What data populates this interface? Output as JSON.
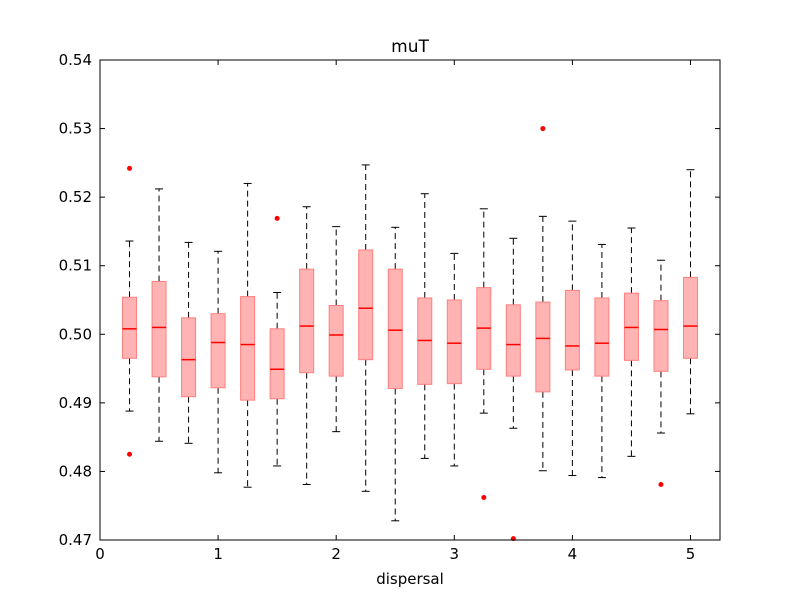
{
  "chart_data": {
    "type": "box",
    "title": "muT",
    "xlabel": "dispersal",
    "ylabel": "",
    "xlim": [
      0,
      5.25
    ],
    "ylim": [
      0.47,
      0.54
    ],
    "x_ticks": [
      0,
      1,
      2,
      3,
      4,
      5
    ],
    "x_tick_labels": [
      "0",
      "1",
      "2",
      "3",
      "4",
      "5"
    ],
    "y_ticks": [
      0.47,
      0.48,
      0.49,
      0.5,
      0.51,
      0.52,
      0.53,
      0.54
    ],
    "y_tick_labels": [
      "0.47",
      "0.48",
      "0.49",
      "0.50",
      "0.51",
      "0.52",
      "0.53",
      "0.54"
    ],
    "grid": false,
    "colors": {
      "box_fill": "#ffb3b3",
      "box_edge": "#ff7f7f",
      "median": "#ff0000",
      "whisker": "#000000",
      "outlier": "#ff0000"
    },
    "boxes": [
      {
        "x": 0.25,
        "whisker_low": 0.4888,
        "q1": 0.4965,
        "median": 0.5008,
        "q3": 0.5054,
        "whisker_high": 0.5136,
        "outliers": [
          0.5242,
          0.4825
        ]
      },
      {
        "x": 0.5,
        "whisker_low": 0.4844,
        "q1": 0.4938,
        "median": 0.501,
        "q3": 0.5077,
        "whisker_high": 0.5212,
        "outliers": []
      },
      {
        "x": 0.75,
        "whisker_low": 0.4841,
        "q1": 0.4909,
        "median": 0.4963,
        "q3": 0.5024,
        "whisker_high": 0.5134,
        "outliers": []
      },
      {
        "x": 1.0,
        "whisker_low": 0.4798,
        "q1": 0.4922,
        "median": 0.4988,
        "q3": 0.503,
        "whisker_high": 0.5121,
        "outliers": []
      },
      {
        "x": 1.25,
        "whisker_low": 0.4777,
        "q1": 0.4904,
        "median": 0.4985,
        "q3": 0.5055,
        "whisker_high": 0.522,
        "outliers": []
      },
      {
        "x": 1.5,
        "whisker_low": 0.4808,
        "q1": 0.4906,
        "median": 0.4949,
        "q3": 0.5008,
        "whisker_high": 0.5061,
        "outliers": [
          0.5169
        ]
      },
      {
        "x": 1.75,
        "whisker_low": 0.4781,
        "q1": 0.4944,
        "median": 0.5012,
        "q3": 0.5095,
        "whisker_high": 0.5186,
        "outliers": []
      },
      {
        "x": 2.0,
        "whisker_low": 0.4858,
        "q1": 0.4939,
        "median": 0.4999,
        "q3": 0.5042,
        "whisker_high": 0.5157,
        "outliers": []
      },
      {
        "x": 2.25,
        "whisker_low": 0.4771,
        "q1": 0.4963,
        "median": 0.5038,
        "q3": 0.5123,
        "whisker_high": 0.5247,
        "outliers": []
      },
      {
        "x": 2.5,
        "whisker_low": 0.4728,
        "q1": 0.4921,
        "median": 0.5006,
        "q3": 0.5095,
        "whisker_high": 0.5156,
        "outliers": []
      },
      {
        "x": 2.75,
        "whisker_low": 0.4819,
        "q1": 0.4927,
        "median": 0.4991,
        "q3": 0.5053,
        "whisker_high": 0.5205,
        "outliers": []
      },
      {
        "x": 3.0,
        "whisker_low": 0.4808,
        "q1": 0.4928,
        "median": 0.4987,
        "q3": 0.505,
        "whisker_high": 0.5118,
        "outliers": []
      },
      {
        "x": 3.25,
        "whisker_low": 0.4885,
        "q1": 0.4949,
        "median": 0.5009,
        "q3": 0.5068,
        "whisker_high": 0.5183,
        "outliers": [
          0.4762
        ]
      },
      {
        "x": 3.5,
        "whisker_low": 0.4863,
        "q1": 0.4939,
        "median": 0.4985,
        "q3": 0.5043,
        "whisker_high": 0.514,
        "outliers": [
          0.4702
        ]
      },
      {
        "x": 3.75,
        "whisker_low": 0.4801,
        "q1": 0.4916,
        "median": 0.4994,
        "q3": 0.5047,
        "whisker_high": 0.5172,
        "outliers": [
          0.53
        ]
      },
      {
        "x": 4.0,
        "whisker_low": 0.4794,
        "q1": 0.4948,
        "median": 0.4983,
        "q3": 0.5064,
        "whisker_high": 0.5165,
        "outliers": []
      },
      {
        "x": 4.25,
        "whisker_low": 0.4791,
        "q1": 0.4939,
        "median": 0.4987,
        "q3": 0.5053,
        "whisker_high": 0.5131,
        "outliers": []
      },
      {
        "x": 4.5,
        "whisker_low": 0.4822,
        "q1": 0.4962,
        "median": 0.501,
        "q3": 0.506,
        "whisker_high": 0.5155,
        "outliers": []
      },
      {
        "x": 4.75,
        "whisker_low": 0.4856,
        "q1": 0.4946,
        "median": 0.5007,
        "q3": 0.5049,
        "whisker_high": 0.5108,
        "outliers": [
          0.4781
        ]
      },
      {
        "x": 5.0,
        "whisker_low": 0.4884,
        "q1": 0.4965,
        "median": 0.5012,
        "q3": 0.5083,
        "whisker_high": 0.524,
        "outliers": []
      }
    ]
  }
}
